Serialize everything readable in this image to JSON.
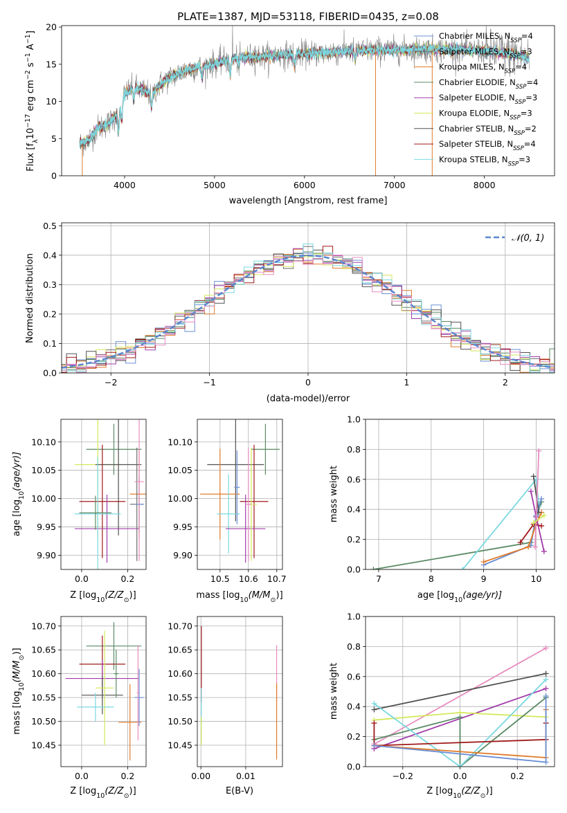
{
  "title": "PLATE=1387, MJD=53118, FIBERID=0435, z=0.08",
  "colors": {
    "Chabrier MILES": "#6a8fd4",
    "Salpeter MILES": "#6b6b6b",
    "Kroupa MILES": "#e07b2a",
    "Chabrier ELODIE": "#5a8a64",
    "Salpeter ELODIE": "#a03aa8",
    "Kroupa ELODIE": "#d4e85a",
    "Chabrier STELIB": "#505050",
    "Salpeter STELIB": "#a01818",
    "Kroupa STELIB": "#7ad8e0",
    "normal": "#5b86cf",
    "pink": "#e88cc0"
  },
  "chart_data": [
    {
      "id": "spectrum",
      "type": "line",
      "title": "PLATE=1387, MJD=53118, FIBERID=0435, z=0.08",
      "xlabel": "wavelength [Angstrom, rest frame]",
      "ylabel_parts": [
        "Flux [f",
        "λ",
        "10",
        "−17",
        " erg cm",
        "−2",
        " s",
        "−1",
        " A",
        "−1",
        "]"
      ],
      "xlim": [
        3300,
        8780
      ],
      "ylim": [
        0,
        20.2
      ],
      "xticks": [
        4000,
        5000,
        6000,
        7000,
        8000
      ],
      "yticks": [
        0,
        5,
        10,
        15,
        20
      ],
      "continuum": [
        [
          3500,
          4.3
        ],
        [
          3600,
          4.8
        ],
        [
          3700,
          6.4
        ],
        [
          3800,
          6.9
        ],
        [
          3900,
          7.9
        ],
        [
          4000,
          11.0
        ],
        [
          4100,
          11.9
        ],
        [
          4200,
          11.5
        ],
        [
          4300,
          11.0
        ],
        [
          4400,
          12.3
        ],
        [
          4500,
          13.2
        ],
        [
          4700,
          14.3
        ],
        [
          4900,
          14.8
        ],
        [
          5100,
          15.4
        ],
        [
          5300,
          15.9
        ],
        [
          5500,
          16.0
        ],
        [
          5800,
          16.3
        ],
        [
          6000,
          16.4
        ],
        [
          6300,
          16.6
        ],
        [
          6500,
          16.8
        ],
        [
          6800,
          16.9
        ],
        [
          7000,
          16.9
        ],
        [
          7300,
          17.0
        ],
        [
          7500,
          17.0
        ],
        [
          7800,
          16.9
        ],
        [
          8000,
          16.8
        ],
        [
          8300,
          16.4
        ],
        [
          8500,
          15.8
        ]
      ],
      "series": [
        {
          "name": "Chabrier MILES",
          "nssp": "4"
        },
        {
          "name": "Salpeter MILES",
          "nssp": "3"
        },
        {
          "name": "Kroupa MILES",
          "nssp": "4"
        },
        {
          "name": "Chabrier ELODIE",
          "nssp": "4"
        },
        {
          "name": "Salpeter ELODIE",
          "nssp": "3"
        },
        {
          "name": "Kroupa ELODIE",
          "nssp": "3"
        },
        {
          "name": "Chabrier STELIB",
          "nssp": "2"
        },
        {
          "name": "Salpeter STELIB",
          "nssp": "4"
        },
        {
          "name": "Kroupa STELIB",
          "nssp": "3"
        }
      ],
      "legend_position": "right"
    },
    {
      "id": "residuals",
      "type": "step",
      "xlabel": "(data-model)/error",
      "ylabel": "Normed distribution",
      "xlim": [
        -2.5,
        2.5
      ],
      "ylim": [
        0,
        0.51
      ],
      "xticks": [
        -2,
        -1,
        0,
        1,
        2
      ],
      "yticks": [
        0.0,
        0.1,
        0.2,
        0.3,
        0.4,
        0.5
      ],
      "bin_width": 0.1,
      "legend": "𝒩(0, 1)",
      "legend_position": "upper right"
    },
    {
      "id": "age_vs_Z",
      "type": "errorbar",
      "xlabel_parts": [
        "Z [log",
        "10",
        "(Z/Z",
        "⊙",
        ")]"
      ],
      "ylabel_parts": [
        "age  [log",
        "10",
        "(age/yr)]"
      ],
      "xlim": [
        -0.09,
        0.28
      ],
      "ylim": [
        9.875,
        10.14
      ],
      "xticks": [
        0.0,
        0.2
      ],
      "yticks": [
        9.9,
        9.95,
        10.0,
        10.05,
        10.1
      ],
      "points": [
        {
          "s": "Chabrier ELODIE",
          "x": 0.14,
          "y": 10.087,
          "xerr": 0.12,
          "yerr": 0.045
        },
        {
          "s": "Kroupa ELODIE",
          "x": 0.07,
          "y": 10.06,
          "xerr": 0.1,
          "yerr": 0.13
        },
        {
          "s": "Chabrier STELIB",
          "x": 0.16,
          "y": 10.06,
          "xerr": 0.1,
          "yerr": 0.125
        },
        {
          "s": "Salpeter STELIB",
          "x": 0.09,
          "y": 9.995,
          "xerr": 0.1,
          "yerr": 0.1
        },
        {
          "s": "Salpeter ELODIE",
          "x": 0.11,
          "y": 9.947,
          "xerr": 0.14,
          "yerr": 0.06
        },
        {
          "s": "Kroupa STELIB",
          "x": 0.07,
          "y": 9.973,
          "xerr": 0.1,
          "yerr": 0.1
        },
        {
          "s": "Kroupa MILES",
          "x": 0.25,
          "y": 10.008,
          "xerr": 0.04,
          "yerr": 0.078
        },
        {
          "s": "Salpeter MILES",
          "x": 0.24,
          "y": 9.99,
          "xerr": 0.03,
          "yerr": 0.1
        },
        {
          "s": "Chabrier MILES",
          "x": 0.25,
          "y": 9.99,
          "xerr": 0.02,
          "yerr": 0.05
        },
        {
          "s": "Chabrier ELODIE",
          "x": 0.06,
          "y": 9.975,
          "xerr": 0.07,
          "yerr": 0.03
        },
        {
          "s": "pink",
          "x": 0.25,
          "y": 10.03,
          "xerr": 0.02,
          "yerr": 0.14
        }
      ]
    },
    {
      "id": "age_vs_mass",
      "type": "errorbar",
      "xlabel_parts": [
        "mass [log",
        "10",
        "(M/M",
        "⊙",
        ")]"
      ],
      "xlim": [
        10.42,
        10.72
      ],
      "ylim": [
        9.875,
        10.14
      ],
      "xticks": [
        10.5,
        10.6,
        10.7
      ],
      "yticks": [
        9.9,
        9.95,
        10.0,
        10.05,
        10.1
      ],
      "points": [
        {
          "s": "Chabrier ELODIE",
          "x": 10.66,
          "y": 10.087,
          "xerr": 0.05,
          "yerr": 0.045
        },
        {
          "s": "Chabrier STELIB",
          "x": 10.555,
          "y": 10.06,
          "xerr": 0.1,
          "yerr": 0.1
        },
        {
          "s": "Kroupa MILES",
          "x": 10.5,
          "y": 10.008,
          "xerr": 0.07,
          "yerr": 0.08
        },
        {
          "s": "Salpeter STELIB",
          "x": 10.62,
          "y": 9.995,
          "xerr": 0.05,
          "yerr": 0.1
        },
        {
          "s": "Kroupa STELIB",
          "x": 10.53,
          "y": 9.973,
          "xerr": 0.04,
          "yerr": 0.07
        },
        {
          "s": "Salpeter ELODIE",
          "x": 10.59,
          "y": 9.947,
          "xerr": 0.07,
          "yerr": 0.06
        },
        {
          "s": "Chabrier MILES",
          "x": 10.56,
          "y": 10.02,
          "xerr": 0.01,
          "yerr": 0.065
        },
        {
          "s": "Kroupa ELODIE",
          "x": 10.61,
          "y": 9.99,
          "xerr": 0.02,
          "yerr": 0.1
        },
        {
          "s": "pink",
          "x": 10.6,
          "y": 9.99,
          "xerr": 0.01,
          "yerr": 0.1
        }
      ]
    },
    {
      "id": "weight_vs_age",
      "type": "line",
      "xlabel_parts": [
        "age  [log",
        "10",
        "(age/yr)]"
      ],
      "ylabel": "mass weight",
      "xlim": [
        6.75,
        10.35
      ],
      "ylim": [
        0,
        1.0
      ],
      "xticks": [
        7,
        8,
        9,
        10
      ],
      "yticks": [
        0.0,
        0.2,
        0.4,
        0.6,
        0.8,
        1.0
      ],
      "series": [
        {
          "s": "Chabrier ELODIE",
          "pts": [
            [
              6.9,
              0.0
            ],
            [
              9.9,
              0.18
            ],
            [
              10.0,
              0.35
            ],
            [
              10.1,
              0.45
            ]
          ]
        },
        {
          "s": "Kroupa STELIB",
          "pts": [
            [
              8.6,
              0.0
            ],
            [
              10.0,
              0.6
            ],
            [
              10.05,
              0.42
            ]
          ]
        },
        {
          "s": "Chabrier MILES",
          "pts": [
            [
              9.0,
              0.03
            ],
            [
              9.9,
              0.16
            ],
            [
              10.0,
              0.36
            ],
            [
              10.1,
              0.47
            ]
          ]
        },
        {
          "s": "Kroupa MILES",
          "pts": [
            [
              9.0,
              0.05
            ],
            [
              9.85,
              0.15
            ],
            [
              10.0,
              0.3
            ],
            [
              10.1,
              0.38
            ]
          ]
        },
        {
          "s": "Salpeter STELIB",
          "pts": [
            [
              9.7,
              0.18
            ],
            [
              9.95,
              0.3
            ],
            [
              10.1,
              0.29
            ]
          ]
        },
        {
          "s": "Salpeter ELODIE",
          "pts": [
            [
              9.9,
              0.52
            ],
            [
              10.0,
              0.35
            ],
            [
              10.15,
              0.12
            ]
          ]
        },
        {
          "s": "Chabrier STELIB",
          "pts": [
            [
              9.95,
              0.62
            ],
            [
              10.05,
              0.38
            ]
          ]
        },
        {
          "s": "pink",
          "pts": [
            [
              9.98,
              0.15
            ],
            [
              10.05,
              0.79
            ]
          ]
        },
        {
          "s": "Kroupa ELODIE",
          "pts": [
            [
              9.95,
              0.31
            ],
            [
              10.15,
              0.36
            ]
          ]
        }
      ]
    },
    {
      "id": "mass_vs_Z",
      "type": "errorbar",
      "xlabel_parts": [
        "Z [log",
        "10",
        "(Z/Z",
        "⊙",
        ")]"
      ],
      "ylabel_parts": [
        "mass [log",
        "10",
        "(M/M",
        "⊙",
        ")]"
      ],
      "xlim": [
        -0.09,
        0.28
      ],
      "ylim": [
        10.405,
        10.72
      ],
      "xticks": [
        0.0,
        0.2
      ],
      "yticks": [
        10.45,
        10.5,
        10.55,
        10.6,
        10.65,
        10.7
      ],
      "points": [
        {
          "s": "Chabrier ELODIE",
          "x": 0.14,
          "y": 10.658,
          "xerr": 0.12,
          "yerr": 0.05
        },
        {
          "s": "Salpeter STELIB",
          "x": 0.09,
          "y": 10.62,
          "xerr": 0.1,
          "yerr": 0.06
        },
        {
          "s": "Salpeter ELODIE",
          "x": 0.09,
          "y": 10.59,
          "xerr": 0.16,
          "yerr": 0.04
        },
        {
          "s": "Chabrier STELIB",
          "x": 0.09,
          "y": 10.555,
          "xerr": 0.09,
          "yerr": 0.04
        },
        {
          "s": "Kroupa STELIB",
          "x": 0.06,
          "y": 10.53,
          "xerr": 0.08,
          "yerr": 0.03
        },
        {
          "s": "Kroupa ELODIE",
          "x": 0.1,
          "y": 10.57,
          "xerr": 0.04,
          "yerr": 0.12
        },
        {
          "s": "Kroupa MILES",
          "x": 0.21,
          "y": 10.498,
          "xerr": 0.05,
          "yerr": 0.08
        },
        {
          "s": "Chabrier MILES",
          "x": 0.25,
          "y": 10.55,
          "xerr": 0.02,
          "yerr": 0.06
        },
        {
          "s": "pink",
          "x": 0.245,
          "y": 10.56,
          "xerr": 0.005,
          "yerr": 0.1
        },
        {
          "s": "Chabrier ELODIE",
          "x": 0.15,
          "y": 10.6,
          "xerr": 0.01,
          "yerr": 0.05
        }
      ]
    },
    {
      "id": "mass_vs_EBV",
      "type": "errorbar",
      "xlabel": "E(B-V)",
      "xlim": [
        -0.0008,
        0.0182
      ],
      "ylim": [
        10.405,
        10.72
      ],
      "xticks": [
        0.0,
        0.01
      ],
      "yticks": [
        10.45,
        10.5,
        10.55,
        10.6,
        10.65,
        10.7
      ],
      "points": [
        {
          "s": "Salpeter STELIB",
          "x": 0.0001,
          "y": 10.62,
          "xerr": 0,
          "yerr": 0.08
        },
        {
          "s": "Kroupa STELIB",
          "x": 0.0001,
          "y": 10.53,
          "xerr": 0,
          "yerr": 0.04
        },
        {
          "s": "Kroupa ELODIE",
          "x": 0.0001,
          "y": 10.48,
          "xerr": 0,
          "yerr": 0.03
        },
        {
          "s": "pink",
          "x": 0.0169,
          "y": 10.6,
          "xerr": 0,
          "yerr": 0.06
        },
        {
          "s": "Kroupa MILES",
          "x": 0.0169,
          "y": 10.5,
          "xerr": 0,
          "yerr": 0.08
        }
      ]
    },
    {
      "id": "weight_vs_Z",
      "type": "line",
      "xlabel_parts": [
        "Z [log",
        "10",
        "(Z/Z",
        "⊙",
        ")]"
      ],
      "ylabel": "mass weight",
      "xlim": [
        -0.33,
        0.33
      ],
      "ylim": [
        0,
        1.0
      ],
      "xticks": [
        -0.2,
        0.0,
        0.2
      ],
      "yticks": [
        0.0,
        0.2,
        0.4,
        0.6,
        0.8,
        1.0
      ],
      "series": [
        {
          "s": "pink",
          "pts": [
            [
              -0.3,
              0.15
            ],
            [
              0.3,
              0.79
            ]
          ]
        },
        {
          "s": "Chabrier STELIB",
          "pts": [
            [
              -0.3,
              0.38
            ],
            [
              0.3,
              0.62
            ]
          ]
        },
        {
          "s": "Salpeter ELODIE",
          "pts": [
            [
              -0.3,
              0.12
            ],
            [
              0.3,
              0.52
            ]
          ]
        },
        {
          "s": "Kroupa ELODIE",
          "pts": [
            [
              -0.3,
              0.31
            ],
            [
              0.0,
              0.36
            ],
            [
              0.3,
              0.33
            ]
          ]
        },
        {
          "s": "Chabrier ELODIE",
          "pts": [
            [
              -0.3,
              0.18
            ],
            [
              0.0,
              0.33
            ],
            [
              0.0,
              0.0
            ],
            [
              0.3,
              0.46
            ]
          ]
        },
        {
          "s": "Kroupa STELIB",
          "pts": [
            [
              -0.3,
              0.42
            ],
            [
              0.0,
              0.0
            ],
            [
              0.3,
              0.58
            ]
          ]
        },
        {
          "s": "Salpeter STELIB",
          "pts": [
            [
              -0.3,
              0.29
            ],
            [
              -0.3,
              0.14
            ],
            [
              0.3,
              0.18
            ],
            [
              0.3,
              0.29
            ]
          ]
        },
        {
          "s": "Kroupa MILES",
          "pts": [
            [
              -0.3,
              0.14
            ],
            [
              0.3,
              0.06
            ],
            [
              0.3,
              0.38
            ]
          ]
        },
        {
          "s": "Chabrier MILES",
          "pts": [
            [
              -0.3,
              0.14
            ],
            [
              0.3,
              0.03
            ],
            [
              0.3,
              0.47
            ]
          ]
        }
      ]
    }
  ]
}
